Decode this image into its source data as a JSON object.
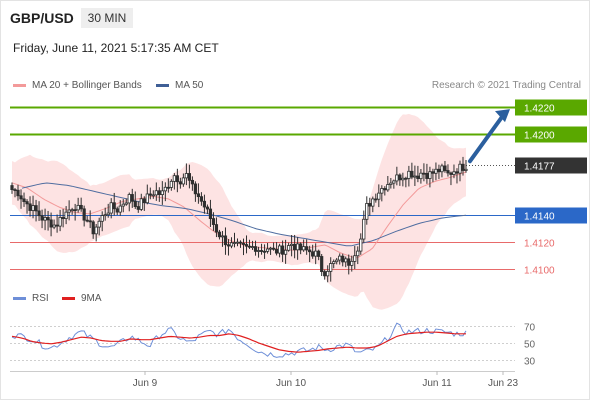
{
  "header": {
    "symbol": "GBP/USD",
    "timeframe": "30 MIN",
    "timestamp": "Friday, June 11, 2021 5:17:35 AM CET"
  },
  "legend": {
    "ma20_label": "MA 20 + Bollinger Bands",
    "ma50_label": "MA 50",
    "rsi_label": "RSI",
    "rsi_ma_label": "9MA"
  },
  "copyright": "Research © 2021 Trading Central",
  "colors": {
    "resistance": "#5aa800",
    "current_price": "#333333",
    "pivot": "#2b68c8",
    "support": "#e86a6a",
    "bollinger_fill": "#fcd9d9",
    "ma20": "#f39a9a",
    "ma50": "#4f6da0",
    "arrow": "#2b5f9e",
    "candle_up": "#2e2e2e",
    "candle_down": "#2e2e2e",
    "rsi": "#6e8fd8",
    "rsi_ma": "#e02020"
  },
  "chart_data": [
    {
      "type": "candlestick",
      "instrument": "GBP/USD",
      "interval": "30 MIN",
      "ylim": [
        1.4092,
        1.4229
      ],
      "x_ticks": [
        "Jun 9",
        "Jun 10",
        "Jun 11",
        "Jun 23"
      ],
      "levels": [
        {
          "value": "1.4220",
          "kind": "resistance"
        },
        {
          "value": "1.4200",
          "kind": "resistance"
        },
        {
          "value": "1.4177",
          "kind": "current"
        },
        {
          "value": "1.4140",
          "kind": "pivot"
        },
        {
          "value": "1.4120",
          "kind": "support"
        },
        {
          "value": "1.4100",
          "kind": "support"
        }
      ],
      "close_path": [
        1.4159,
        1.4157,
        1.415,
        1.4146,
        1.4142,
        1.4137,
        1.4135,
        1.4132,
        1.4139,
        1.4143,
        1.4148,
        1.4142,
        1.4137,
        1.4128,
        1.4135,
        1.4142,
        1.4146,
        1.4144,
        1.415,
        1.4154,
        1.4146,
        1.415,
        1.4154,
        1.4158,
        1.4155,
        1.4162,
        1.417,
        1.4166,
        1.417,
        1.416,
        1.4154,
        1.4146,
        1.4137,
        1.4128,
        1.4122,
        1.4118,
        1.4117,
        1.4116,
        1.4115,
        1.4117,
        1.4114,
        1.4116,
        1.4113,
        1.4114,
        1.4115,
        1.4119,
        1.4115,
        1.4114,
        1.4113,
        1.4111,
        1.4097,
        1.4102,
        1.4105,
        1.4108,
        1.4104,
        1.4112,
        1.412,
        1.4146,
        1.4152,
        1.4158,
        1.4162,
        1.4166,
        1.4168,
        1.417,
        1.4172,
        1.4169,
        1.4172,
        1.417,
        1.4172,
        1.4174,
        1.417,
        1.4173,
        1.4175,
        1.4177
      ],
      "ma20": [
        1.4164,
        1.416,
        1.4152,
        1.4146,
        1.4142,
        1.4141,
        1.4145,
        1.415,
        1.4152,
        1.4154,
        1.4152,
        1.4146,
        1.4136,
        1.4127,
        1.4121,
        1.4117,
        1.4116,
        1.4115,
        1.4114,
        1.4116,
        1.4118,
        1.4112,
        1.4108,
        1.4115,
        1.4132,
        1.4148,
        1.416,
        1.4165,
        1.4168,
        1.4172
      ],
      "ma50": [
        1.416,
        1.4164,
        1.4162,
        1.4158,
        1.4154,
        1.415,
        1.4147,
        1.4145,
        1.4141,
        1.4136,
        1.413,
        1.4126,
        1.4123,
        1.412,
        1.4117,
        1.4121,
        1.4128,
        1.4134,
        1.4138,
        1.414
      ],
      "forecast": {
        "from": "1.4177",
        "to": "1.4220"
      }
    },
    {
      "type": "line",
      "title": "RSI",
      "yticks": [
        30,
        50,
        70
      ],
      "series": [
        {
          "name": "RSI",
          "values": [
            60,
            58,
            55,
            48,
            44,
            51,
            58,
            63,
            56,
            49,
            44,
            50,
            58,
            52,
            47,
            60,
            66,
            56,
            50,
            58,
            64,
            60,
            67,
            55,
            48,
            40,
            37,
            36,
            37,
            40,
            41,
            45,
            42,
            46,
            48,
            38,
            40,
            44,
            55,
            70,
            63,
            64,
            65,
            64,
            63,
            61,
            62
          ]
        },
        {
          "name": "9MA",
          "values": [
            58,
            56,
            52,
            50,
            49,
            51,
            54,
            57,
            56,
            53,
            52,
            52,
            55,
            54,
            54,
            56,
            58,
            57,
            56,
            57,
            59,
            59,
            61,
            59,
            55,
            50,
            46,
            42,
            40,
            39,
            40,
            41,
            43,
            44,
            45,
            44,
            44,
            46,
            52,
            58,
            61,
            62,
            63,
            63,
            62,
            61,
            61
          ]
        }
      ]
    }
  ]
}
